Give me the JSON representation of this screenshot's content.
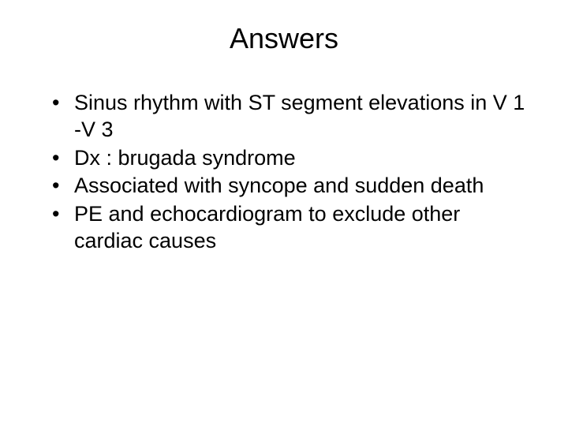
{
  "slide": {
    "title": "Answers",
    "bullets": [
      "Sinus rhythm with ST segment elevations in V 1 -V 3",
      "Dx : brugada syndrome",
      "Associated with syncope and sudden death",
      "PE and echocardiogram to exclude other cardiac causes"
    ],
    "title_fontsize": 36,
    "bullet_fontsize": 27,
    "background_color": "#ffffff",
    "text_color": "#000000"
  }
}
